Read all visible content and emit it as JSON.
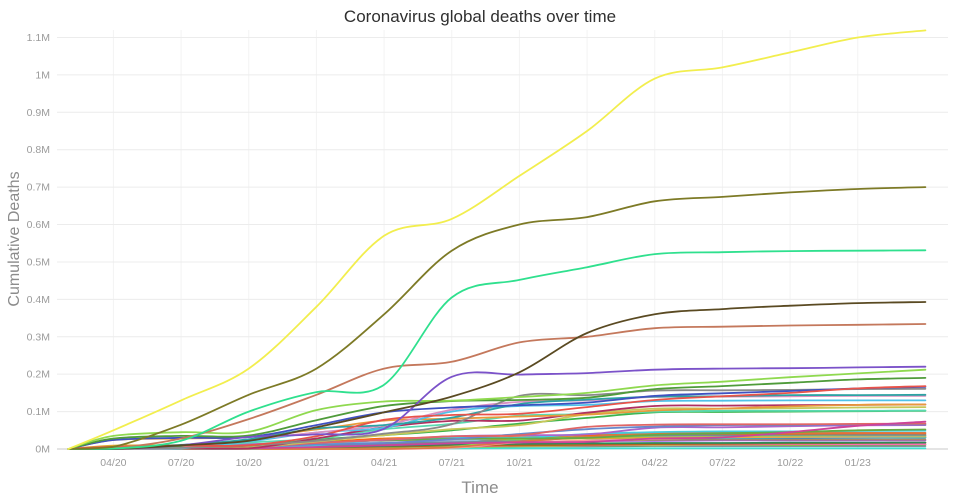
{
  "title": "Coronavirus global deaths over time",
  "axes": {
    "x_label": "Time",
    "y_label": "Cumulative Deaths"
  },
  "chart_data": {
    "type": "line",
    "title": "Coronavirus global deaths over time",
    "xlabel": "Time",
    "ylabel": "Cumulative Deaths",
    "grid": true,
    "legend": "none",
    "ylim": [
      0,
      1.12
    ],
    "y_unit": "millions of deaths",
    "x_unit": "months since 2020-02",
    "x": [
      0,
      2,
      5,
      8,
      11,
      14,
      17,
      20,
      23,
      26,
      29,
      32,
      35,
      38
    ],
    "x_ticks": {
      "months": [
        2,
        5,
        8,
        11,
        14,
        17,
        20,
        23,
        26,
        29,
        32,
        35
      ],
      "labels": [
        "04/20",
        "07/20",
        "10/20",
        "01/21",
        "04/21",
        "07/21",
        "10/21",
        "01/22",
        "04/22",
        "07/22",
        "10/22",
        "01/23"
      ]
    },
    "y_ticks": {
      "values": [
        0,
        0.1,
        0.2,
        0.3,
        0.4,
        0.5,
        0.6,
        0.7,
        0.8,
        0.9,
        1.0,
        1.1
      ],
      "labels": [
        "0M",
        "0.1M",
        "0.2M",
        "0.3M",
        "0.4M",
        "0.5M",
        "0.6M",
        "0.7M",
        "0.8M",
        "0.9M",
        "1M",
        "1.1M"
      ]
    },
    "series": [
      {
        "id": "series-01",
        "color": "#40e0d0",
        "values": [
          0,
          0.001,
          0.002,
          0.002,
          0.002,
          0.002,
          0.002,
          0.002,
          0.002,
          0.002,
          0.002,
          0.002,
          0.002,
          0.002
        ]
      },
      {
        "id": "series-02",
        "color": "#708090",
        "values": [
          0,
          0.0003,
          0.001,
          0.002,
          0.004,
          0.005,
          0.006,
          0.007,
          0.007,
          0.008,
          0.008,
          0.008,
          0.008,
          0.008
        ]
      },
      {
        "id": "series-03",
        "color": "#9acd32",
        "values": [
          0,
          0.0001,
          0.0005,
          0.001,
          0.002,
          0.003,
          0.005,
          0.007,
          0.009,
          0.01,
          0.011,
          0.011,
          0.012,
          0.012
        ]
      },
      {
        "id": "series-04",
        "color": "#ff69b4",
        "values": [
          0,
          0.0001,
          0.0003,
          0.0008,
          0.002,
          0.004,
          0.006,
          0.009,
          0.01,
          0.012,
          0.012,
          0.013,
          0.013,
          0.013
        ]
      },
      {
        "id": "series-05",
        "color": "#b5651d",
        "values": [
          0,
          0.0005,
          0.001,
          0.002,
          0.004,
          0.006,
          0.008,
          0.01,
          0.011,
          0.013,
          0.014,
          0.015,
          0.016,
          0.017
        ]
      },
      {
        "id": "series-06",
        "color": "#2e8b57",
        "values": [
          0,
          0.0002,
          0.001,
          0.003,
          0.005,
          0.008,
          0.012,
          0.014,
          0.015,
          0.016,
          0.016,
          0.017,
          0.017,
          0.017
        ]
      },
      {
        "id": "series-07",
        "color": "#9955ee",
        "values": [
          0,
          0.006,
          0.006,
          0.007,
          0.012,
          0.017,
          0.018,
          0.018,
          0.021,
          0.022,
          0.023,
          0.023,
          0.023,
          0.023
        ]
      },
      {
        "id": "series-08",
        "color": "#aa8866",
        "values": [
          0,
          0.0002,
          0.002,
          0.006,
          0.008,
          0.013,
          0.016,
          0.018,
          0.022,
          0.024,
          0.025,
          0.025,
          0.025,
          0.025
        ]
      },
      {
        "id": "series-09",
        "color": "#5577aa",
        "values": [
          0,
          0.0002,
          0.002,
          0.005,
          0.008,
          0.01,
          0.015,
          0.027,
          0.028,
          0.029,
          0.029,
          0.029,
          0.03,
          0.03
        ]
      },
      {
        "id": "series-10",
        "color": "#33ccbb",
        "values": [
          0,
          0.0002,
          0.004,
          0.007,
          0.01,
          0.016,
          0.022,
          0.028,
          0.029,
          0.03,
          0.03,
          0.031,
          0.031,
          0.031
        ]
      },
      {
        "id": "series-11",
        "color": "#ff9999",
        "values": [
          0,
          0.0001,
          0.0001,
          0.0001,
          0.0001,
          0.0001,
          0.003,
          0.018,
          0.022,
          0.027,
          0.031,
          0.032,
          0.033,
          0.034
        ]
      },
      {
        "id": "series-12",
        "color": "#ddaa33",
        "values": [
          0,
          0.009,
          0.01,
          0.01,
          0.02,
          0.023,
          0.025,
          0.026,
          0.028,
          0.031,
          0.032,
          0.033,
          0.034,
          0.034
        ]
      },
      {
        "id": "series-13",
        "color": "#99bbdd",
        "values": [
          0,
          0.001,
          0.0045,
          0.012,
          0.014,
          0.017,
          0.021,
          0.032,
          0.033,
          0.035,
          0.036,
          0.036,
          0.036,
          0.036
        ]
      },
      {
        "id": "series-14",
        "color": "#88dd55",
        "values": [
          0,
          0.0001,
          0.0001,
          0.0002,
          0.0005,
          0.0013,
          0.006,
          0.025,
          0.031,
          0.035,
          0.036,
          0.036,
          0.037,
          0.037
        ]
      },
      {
        "id": "series-15",
        "color": "#778899",
        "values": [
          0,
          0.0001,
          0.0002,
          0.001,
          0.008,
          0.014,
          0.018,
          0.021,
          0.032,
          0.036,
          0.037,
          0.038,
          0.038,
          0.038
        ]
      },
      {
        "id": "series-16",
        "color": "#ff6600",
        "values": [
          0,
          0.0003,
          0.0004,
          0.001,
          0.016,
          0.028,
          0.03,
          0.031,
          0.037,
          0.04,
          0.041,
          0.041,
          0.042,
          0.042
        ]
      },
      {
        "id": "series-17",
        "color": "#dd7744",
        "values": [
          0,
          0,
          0,
          0.0001,
          0.0001,
          0.0001,
          0.005,
          0.02,
          0.032,
          0.043,
          0.043,
          0.043,
          0.043,
          0.043
        ]
      },
      {
        "id": "series-18",
        "color": "#44ccdd",
        "values": [
          0,
          0.0004,
          0.0006,
          0.001,
          0.01,
          0.025,
          0.03,
          0.03,
          0.04,
          0.045,
          0.047,
          0.047,
          0.048,
          0.049
        ]
      },
      {
        "id": "series-19",
        "color": "#66aa44",
        "values": [
          0,
          0.003,
          0.009,
          0.01,
          0.018,
          0.023,
          0.027,
          0.028,
          0.03,
          0.038,
          0.042,
          0.045,
          0.05,
          0.052
        ]
      },
      {
        "id": "series-20",
        "color": "#aa66cc",
        "values": [
          0,
          0.0002,
          0.005,
          0.013,
          0.017,
          0.024,
          0.034,
          0.037,
          0.039,
          0.057,
          0.058,
          0.061,
          0.063,
          0.064
        ]
      },
      {
        "id": "series-21",
        "color": "#6688cc",
        "values": [
          0,
          0.0005,
          0.001,
          0.006,
          0.012,
          0.016,
          0.026,
          0.04,
          0.053,
          0.06,
          0.064,
          0.064,
          0.066,
          0.066
        ]
      },
      {
        "id": "series-22",
        "color": "#e06666",
        "values": [
          0,
          0.0012,
          0.002,
          0.005,
          0.016,
          0.025,
          0.034,
          0.037,
          0.059,
          0.065,
          0.066,
          0.066,
          0.067,
          0.068
        ]
      },
      {
        "id": "series-23",
        "color": "#cc4499",
        "values": [
          0,
          0.0004,
          0.001,
          0.002,
          0.005,
          0.01,
          0.015,
          0.018,
          0.019,
          0.028,
          0.031,
          0.045,
          0.062,
          0.073
        ]
      },
      {
        "id": "series-24",
        "color": "#3cb44b",
        "values": [
          0,
          0.003,
          0.005,
          0.009,
          0.025,
          0.037,
          0.05,
          0.068,
          0.083,
          0.098,
          0.099,
          0.1,
          0.101,
          0.102
        ]
      },
      {
        "id": "series-25",
        "color": "#5ad9b0",
        "values": [
          0,
          0.0001,
          0.003,
          0.017,
          0.028,
          0.053,
          0.067,
          0.089,
          0.093,
          0.1,
          0.102,
          0.102,
          0.102,
          0.103
        ]
      },
      {
        "id": "series-26",
        "color": "#c7c75a",
        "values": [
          0,
          0.0001,
          0.001,
          0.004,
          0.02,
          0.037,
          0.053,
          0.064,
          0.093,
          0.108,
          0.108,
          0.109,
          0.111,
          0.112
        ]
      },
      {
        "id": "series-27",
        "color": "#b03060",
        "values": [
          0,
          0.001,
          0.0015,
          0.002,
          0.028,
          0.058,
          0.075,
          0.076,
          0.097,
          0.115,
          0.116,
          0.117,
          0.118,
          0.119
        ]
      },
      {
        "id": "series-28",
        "color": "#e89a3c",
        "values": [
          0,
          0.024,
          0.028,
          0.032,
          0.052,
          0.076,
          0.081,
          0.087,
          0.092,
          0.103,
          0.108,
          0.114,
          0.118,
          0.119
        ]
      },
      {
        "id": "series-29",
        "color": "#4fc1e8",
        "values": [
          0,
          0.0003,
          0.002,
          0.02,
          0.044,
          0.057,
          0.1,
          0.115,
          0.118,
          0.128,
          0.129,
          0.13,
          0.13,
          0.13
        ]
      },
      {
        "id": "series-30",
        "color": "#d98fc2",
        "values": [
          0,
          0.0003,
          0.003,
          0.025,
          0.044,
          0.064,
          0.105,
          0.126,
          0.13,
          0.139,
          0.14,
          0.141,
          0.142,
          0.142
        ]
      },
      {
        "id": "series-31",
        "color": "#2ca3a3",
        "values": [
          0,
          0.005,
          0.011,
          0.026,
          0.055,
          0.064,
          0.084,
          0.12,
          0.132,
          0.14,
          0.141,
          0.144,
          0.144,
          0.145
        ]
      },
      {
        "id": "series-32",
        "color": "#8a8a8a",
        "values": [
          0,
          0.0008,
          0.003,
          0.01,
          0.022,
          0.041,
          0.066,
          0.142,
          0.144,
          0.156,
          0.157,
          0.158,
          0.16,
          0.161
        ]
      },
      {
        "id": "series-33",
        "color": "#3f51c1",
        "values": [
          0,
          0.024,
          0.03,
          0.032,
          0.064,
          0.098,
          0.111,
          0.117,
          0.124,
          0.142,
          0.149,
          0.155,
          0.162,
          0.166
        ]
      },
      {
        "id": "series-34",
        "color": "#e8534a",
        "values": [
          0,
          0.006,
          0.009,
          0.01,
          0.034,
          0.078,
          0.091,
          0.094,
          0.112,
          0.131,
          0.141,
          0.15,
          0.162,
          0.168
        ]
      },
      {
        "id": "series-35",
        "color": "#4f9b3a",
        "values": [
          0,
          0.028,
          0.035,
          0.036,
          0.077,
          0.115,
          0.128,
          0.131,
          0.137,
          0.16,
          0.168,
          0.177,
          0.186,
          0.19
        ]
      },
      {
        "id": "series-36",
        "color": "#8fd94f",
        "values": [
          0,
          0.035,
          0.045,
          0.046,
          0.104,
          0.127,
          0.129,
          0.139,
          0.15,
          0.17,
          0.18,
          0.192,
          0.202,
          0.212
        ]
      },
      {
        "id": "series-37",
        "color": "#7b52c9",
        "values": [
          0,
          0.0001,
          0.01,
          0.032,
          0.039,
          0.054,
          0.193,
          0.199,
          0.203,
          0.212,
          0.215,
          0.216,
          0.218,
          0.22
        ]
      },
      {
        "id": "series-38",
        "color": "#c4785c",
        "values": [
          0,
          0.002,
          0.028,
          0.08,
          0.145,
          0.215,
          0.233,
          0.285,
          0.3,
          0.323,
          0.327,
          0.33,
          0.332,
          0.334
        ]
      },
      {
        "id": "series-39",
        "color": "#5a4a22",
        "values": [
          0,
          0,
          0.01,
          0.022,
          0.058,
          0.098,
          0.14,
          0.205,
          0.31,
          0.36,
          0.374,
          0.383,
          0.39,
          0.393
        ]
      },
      {
        "id": "series-40",
        "color": "#2fe08e",
        "values": [
          0,
          0.001,
          0.022,
          0.1,
          0.152,
          0.172,
          0.405,
          0.452,
          0.486,
          0.521,
          0.526,
          0.529,
          0.53,
          0.531
        ]
      },
      {
        "id": "series-41",
        "color": "#7d7a26",
        "values": [
          0,
          0.006,
          0.065,
          0.145,
          0.215,
          0.36,
          0.53,
          0.6,
          0.62,
          0.662,
          0.674,
          0.686,
          0.695,
          0.7
        ]
      },
      {
        "id": "series-42",
        "color": "#f2ee4e",
        "values": [
          0,
          0.05,
          0.13,
          0.215,
          0.38,
          0.57,
          0.615,
          0.73,
          0.85,
          0.99,
          1.02,
          1.06,
          1.1,
          1.119
        ]
      }
    ]
  }
}
